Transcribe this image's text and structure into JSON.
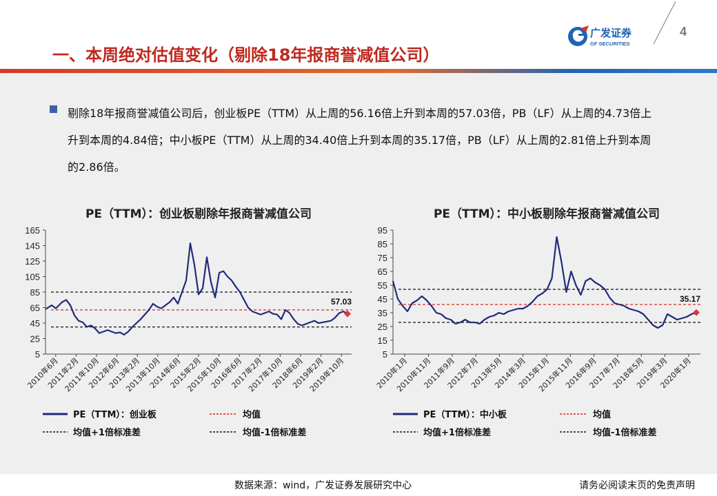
{
  "header": {
    "title": "一、本周绝对估值变化（剔除18年报商誉减值公司）",
    "brand_name": "广发证券",
    "brand_sub": "GF SECURITIES",
    "page_number": "4"
  },
  "bullet": {
    "text": "剔除18年报商誉减值公司后，创业板PE（TTM）从上周的56.16倍上升到本周的57.03倍，PB（LF）从上周的4.73倍上升到本周的4.84倍；中小板PE（TTM）从上周的34.40倍上升到本周的35.17倍，PB（LF）从上周的2.81倍上升到本周的2.86倍。"
  },
  "footer": {
    "source": "数据来源：wind，广发证券发展研究中心",
    "disclaimer": "请务必阅读末页的免责声明"
  },
  "colors": {
    "title_red": "#c0281f",
    "series_blue": "#1f2a7a",
    "mean_red": "#e02020",
    "band_black": "#111111",
    "panel_bg": "#efefef",
    "brand_blue": "#1f64b4"
  },
  "chart_data": [
    {
      "type": "line",
      "title": "PE（TTM）：创业板剔除年报商誉减值公司",
      "ylim": [
        5,
        165
      ],
      "yticks": [
        5,
        25,
        45,
        65,
        85,
        105,
        125,
        145,
        165
      ],
      "xticks": [
        "2010年6月",
        "2011年2月",
        "2011年10月",
        "2012年6月",
        "2013年2月",
        "2013年10月",
        "2014年6月",
        "2015年2月",
        "2015年10月",
        "2016年6月",
        "2017年2月",
        "2017年10月",
        "2018年6月",
        "2019年2月",
        "2019年10月"
      ],
      "x": [
        0,
        0.3,
        0.5,
        0.8,
        1.0,
        1.2,
        1.4,
        1.6,
        1.8,
        2.0,
        2.2,
        2.4,
        2.6,
        2.8,
        3.0,
        3.2,
        3.4,
        3.6,
        3.8,
        4.0,
        4.2,
        4.4,
        4.6,
        4.8,
        5.0,
        5.2,
        5.4,
        5.6,
        5.8,
        6.0,
        6.2,
        6.4,
        6.6,
        6.8,
        7.0,
        7.2,
        7.4,
        7.6,
        7.8,
        8.0,
        8.2,
        8.4,
        8.6,
        8.8,
        9.0,
        9.2,
        9.4,
        9.6,
        9.8,
        10.0,
        10.2,
        10.4,
        10.6,
        10.8,
        11.0,
        11.2,
        11.4,
        11.6,
        11.8,
        12.0,
        12.2,
        12.4,
        12.6,
        12.8,
        13.0,
        13.2,
        13.4,
        13.6,
        13.8,
        14.0,
        14.2,
        14.4,
        14.6
      ],
      "series": [
        {
          "name": "PE（TTM）：创业板",
          "values": [
            63,
            68,
            64,
            72,
            75,
            68,
            55,
            48,
            46,
            40,
            42,
            38,
            32,
            34,
            36,
            34,
            32,
            33,
            30,
            34,
            40,
            45,
            50,
            56,
            62,
            70,
            66,
            64,
            68,
            72,
            78,
            70,
            85,
            100,
            148,
            120,
            82,
            90,
            130,
            98,
            78,
            110,
            112,
            105,
            100,
            92,
            85,
            75,
            65,
            60,
            58,
            56,
            58,
            60,
            57,
            56,
            50,
            62,
            58,
            50,
            44,
            42,
            44,
            46,
            48,
            45,
            46,
            47,
            48,
            52,
            58,
            60,
            57
          ]
        }
      ],
      "mean": 62,
      "upper": 85,
      "lower": 40,
      "end_label": "57.03",
      "legend": {
        "series": "PE（TTM）：创业板",
        "mean": "均值",
        "upper": "均值+1倍标准差",
        "lower": "均值-1倍标准差"
      }
    },
    {
      "type": "line",
      "title": "PE（TTM）：中小板剔除年报商誉减值公司",
      "ylim": [
        5,
        95
      ],
      "yticks": [
        5,
        15,
        25,
        35,
        45,
        55,
        65,
        75,
        85,
        95
      ],
      "xticks": [
        "2010年1月",
        "2010年11月",
        "2011年9月",
        "2012年7月",
        "2013年5月",
        "2014年3月",
        "2015年1月",
        "2015年11月",
        "2016年9月",
        "2017年7月",
        "2018年5月",
        "2019年3月",
        "2020年1月"
      ],
      "x": [
        0,
        0.2,
        0.4,
        0.6,
        0.8,
        1.0,
        1.2,
        1.4,
        1.6,
        1.8,
        2.0,
        2.2,
        2.4,
        2.6,
        2.8,
        3.0,
        3.2,
        3.4,
        3.6,
        3.8,
        4.0,
        4.2,
        4.4,
        4.6,
        4.8,
        5.0,
        5.2,
        5.4,
        5.6,
        5.8,
        6.0,
        6.2,
        6.4,
        6.6,
        6.8,
        7.0,
        7.2,
        7.4,
        7.6,
        7.8,
        8.0,
        8.2,
        8.4,
        8.6,
        8.8,
        9.0,
        9.2,
        9.4,
        9.6,
        9.8,
        10.0,
        10.2,
        10.4,
        10.6,
        10.8,
        11.0,
        11.2,
        11.4,
        11.6,
        11.8,
        12.0,
        12.2,
        12.4,
        12.6
      ],
      "series": [
        {
          "name": "PE（TTM）：中小板",
          "values": [
            58,
            45,
            40,
            36,
            42,
            44,
            47,
            44,
            40,
            35,
            34,
            31,
            30,
            27,
            28,
            30,
            28,
            28,
            27,
            30,
            32,
            33,
            35,
            34,
            36,
            37,
            38,
            38,
            40,
            43,
            47,
            49,
            52,
            60,
            90,
            72,
            50,
            65,
            55,
            48,
            58,
            60,
            57,
            55,
            52,
            46,
            42,
            41,
            40,
            38,
            37,
            36,
            34,
            30,
            26,
            24,
            26,
            34,
            32,
            30,
            31,
            32,
            34,
            35.17
          ]
        }
      ],
      "mean": 41,
      "upper": 52,
      "lower": 28,
      "end_label": "35.17",
      "legend": {
        "series": "PE（TTM）：中小板",
        "mean": "均值",
        "upper": "均值+1倍标准差",
        "lower": "均值-1倍标准差"
      }
    }
  ]
}
